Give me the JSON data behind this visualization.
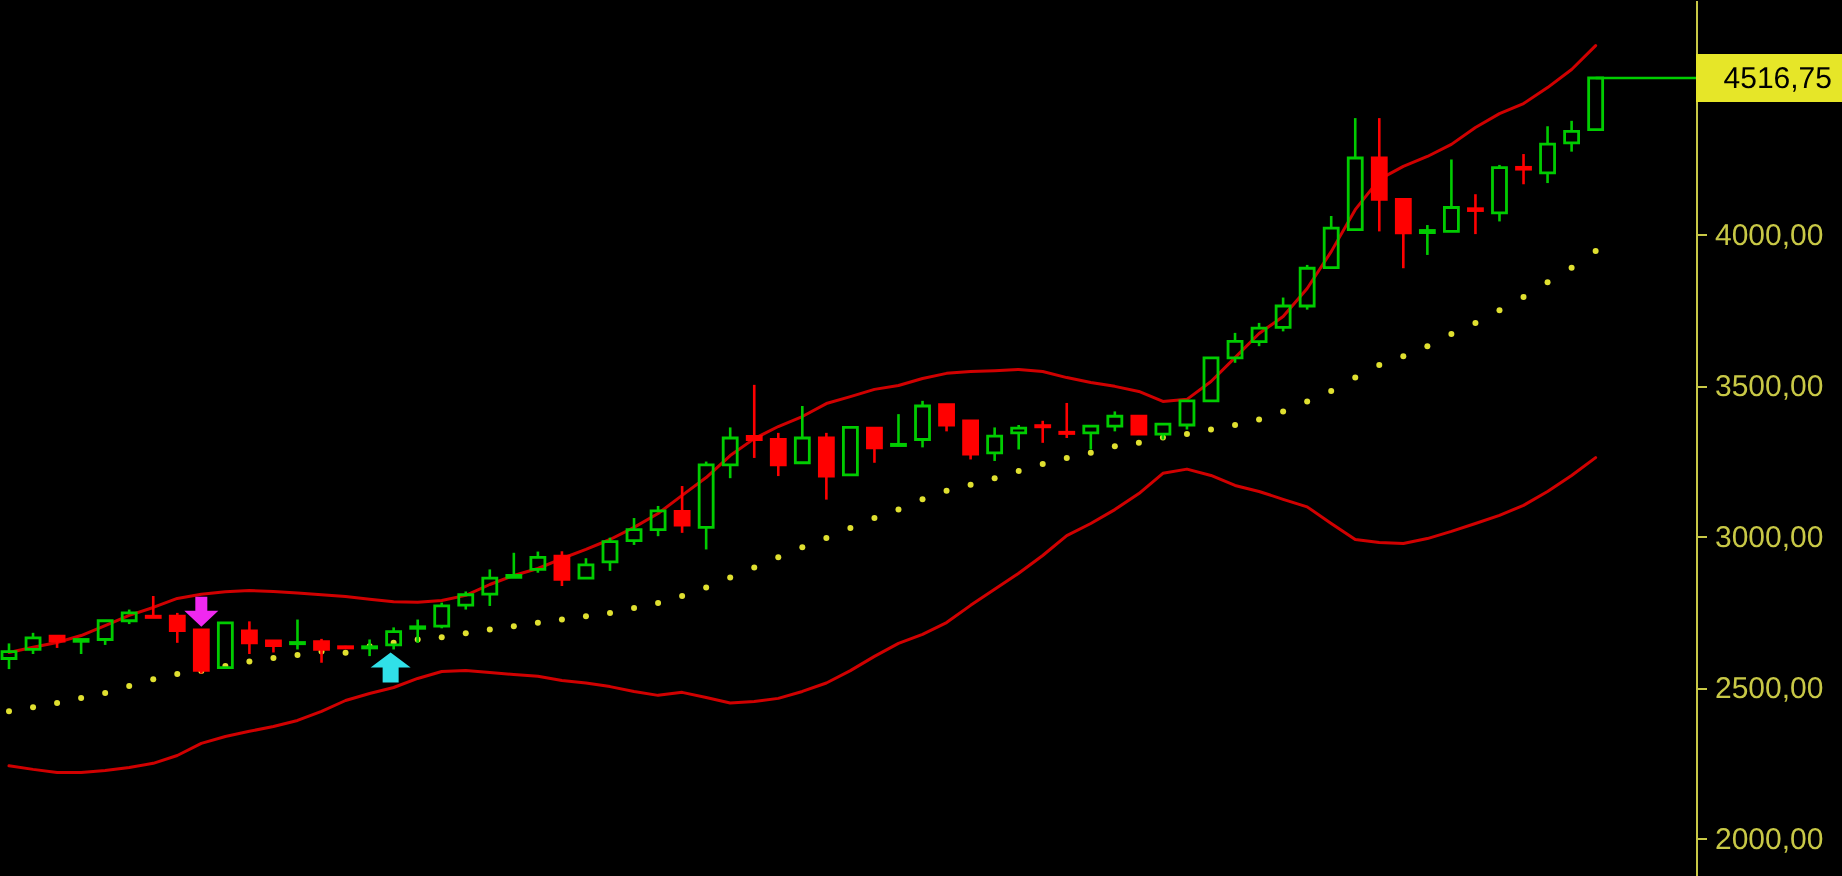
{
  "chart_data": {
    "type": "candlestick",
    "categories": [
      null,
      null,
      null,
      null,
      null,
      null,
      null,
      null,
      null,
      null,
      null,
      null,
      null,
      null,
      null,
      null,
      null,
      null,
      null,
      null,
      null,
      null,
      null,
      null,
      null,
      null,
      null,
      null,
      null,
      null,
      null,
      null,
      null,
      null,
      null,
      null,
      null,
      null,
      null,
      null,
      null,
      null,
      null,
      null,
      null,
      null,
      null,
      null,
      null,
      null,
      null,
      null,
      null,
      null,
      null,
      null,
      null,
      null,
      null,
      null,
      null,
      null,
      null,
      null,
      null,
      null,
      null
    ],
    "ohlc": [
      [
        2595,
        2645,
        2560,
        2618
      ],
      [
        2625,
        2680,
        2610,
        2663
      ],
      [
        2669,
        2669,
        2630,
        2653
      ],
      [
        2652,
        2660,
        2610,
        2658
      ],
      [
        2658,
        2720,
        2640,
        2720
      ],
      [
        2720,
        2757,
        2709,
        2746
      ],
      [
        2735,
        2802,
        2731,
        2731
      ],
      [
        2735,
        2746,
        2647,
        2687
      ],
      [
        2690,
        2690,
        2545,
        2556
      ],
      [
        2565,
        2713,
        2565,
        2713
      ],
      [
        2686,
        2718,
        2610,
        2647
      ],
      [
        2653,
        2653,
        2615,
        2638
      ],
      [
        2644,
        2724,
        2625,
        2648
      ],
      [
        2651,
        2660,
        2581,
        2625
      ],
      [
        2634,
        2637,
        2628,
        2630
      ],
      [
        2630,
        2658,
        2603,
        2634
      ],
      [
        2640,
        2698,
        2625,
        2684
      ],
      [
        2695,
        2724,
        2647,
        2700
      ],
      [
        2702,
        2780,
        2695,
        2769
      ],
      [
        2772,
        2817,
        2757,
        2806
      ],
      [
        2808,
        2890,
        2769,
        2861
      ],
      [
        2864,
        2945,
        2864,
        2870
      ],
      [
        2890,
        2949,
        2879,
        2930
      ],
      [
        2934,
        2950,
        2835,
        2857
      ],
      [
        2861,
        2927,
        2861,
        2905
      ],
      [
        2915,
        2995,
        2885,
        2982
      ],
      [
        2985,
        3060,
        2971,
        3022
      ],
      [
        3022,
        3100,
        3000,
        3084
      ],
      [
        3082,
        3166,
        3011,
        3037
      ],
      [
        3029,
        3247,
        2956,
        3236
      ],
      [
        3236,
        3360,
        3192,
        3325
      ],
      [
        3330,
        3501,
        3259,
        3320
      ],
      [
        3320,
        3342,
        3199,
        3236
      ],
      [
        3243,
        3431,
        3243,
        3325
      ],
      [
        3325,
        3342,
        3121,
        3199
      ],
      [
        3203,
        3360,
        3203,
        3360
      ],
      [
        3358,
        3358,
        3243,
        3292
      ],
      [
        3300,
        3404,
        3300,
        3304
      ],
      [
        3320,
        3448,
        3294,
        3431
      ],
      [
        3435,
        3435,
        3347,
        3368
      ],
      [
        3382,
        3382,
        3254,
        3272
      ],
      [
        3276,
        3360,
        3249,
        3331
      ],
      [
        3342,
        3368,
        3287,
        3358
      ],
      [
        3366,
        3382,
        3309,
        3362
      ],
      [
        3344,
        3441,
        3325,
        3340
      ],
      [
        3342,
        3364,
        3287,
        3364
      ],
      [
        3364,
        3413,
        3347,
        3397
      ],
      [
        3397,
        3397,
        3336,
        3338
      ],
      [
        3338,
        3371,
        3320,
        3371
      ],
      [
        3368,
        3448,
        3353,
        3448
      ],
      [
        3448,
        3590,
        3448,
        3590
      ],
      [
        3590,
        3673,
        3574,
        3645
      ],
      [
        3644,
        3706,
        3629,
        3689
      ],
      [
        3691,
        3790,
        3678,
        3762
      ],
      [
        3762,
        3898,
        3750,
        3887
      ],
      [
        3889,
        4060,
        3889,
        4020
      ],
      [
        4015,
        4384,
        4015,
        4252
      ],
      [
        4252,
        4384,
        4009,
        4115
      ],
      [
        4115,
        4115,
        3887,
        4004
      ],
      [
        4005,
        4030,
        3931,
        4012
      ],
      [
        4009,
        4247,
        4009,
        4088
      ],
      [
        4084,
        4132,
        4000,
        4078
      ],
      [
        4070,
        4229,
        4042,
        4220
      ],
      [
        4221,
        4265,
        4165,
        4215
      ],
      [
        4203,
        4357,
        4169,
        4298
      ],
      [
        4302,
        4375,
        4273,
        4340
      ],
      [
        4346,
        4516.75,
        4346,
        4516.75
      ]
    ],
    "colors": [
      "#00cc00",
      "#00cc00",
      "#ff0000",
      "#00cc00",
      "#00cc00",
      "#00cc00",
      "#ff0000",
      "#ff0000",
      "#ff0000",
      "#00cc00",
      "#ff0000",
      "#ff0000",
      "#00cc00",
      "#ff0000",
      "#ff0000",
      "#00cc00",
      "#00cc00",
      "#00cc00",
      "#00cc00",
      "#00cc00",
      "#00cc00",
      "#00cc00",
      "#00cc00",
      "#ff0000",
      "#00cc00",
      "#00cc00",
      "#00cc00",
      "#00cc00",
      "#ff0000",
      "#00cc00",
      "#00cc00",
      "#ff0000",
      "#ff0000",
      "#00cc00",
      "#ff0000",
      "#00cc00",
      "#ff0000",
      "#00cc00",
      "#00cc00",
      "#ff0000",
      "#ff0000",
      "#00cc00",
      "#00cc00",
      "#ff0000",
      "#ff0000",
      "#00cc00",
      "#00cc00",
      "#ff0000",
      "#00cc00",
      "#00cc00",
      "#00cc00",
      "#00cc00",
      "#00cc00",
      "#00cc00",
      "#00cc00",
      "#00cc00",
      "#00cc00",
      "#ff0000",
      "#ff0000",
      "#00cc00",
      "#00cc00",
      "#ff0000",
      "#00cc00",
      "#ff0000",
      "#00cc00",
      "#00cc00",
      "#00cc00"
    ],
    "series": [
      {
        "type": "line",
        "color": "#d00000",
        "values": [
          2615,
          2632,
          2648,
          2671,
          2704,
          2738,
          2764,
          2794,
          2808,
          2816,
          2820,
          2817,
          2812,
          2806,
          2800,
          2791,
          2783,
          2781,
          2787,
          2804,
          2840,
          2870,
          2893,
          2926,
          2956,
          2989,
          3029,
          3075,
          3135,
          3194,
          3267,
          3323,
          3363,
          3396,
          3439,
          3462,
          3486,
          3499,
          3522,
          3539,
          3545,
          3548,
          3552,
          3545,
          3525,
          3509,
          3496,
          3479,
          3446,
          3453,
          3512,
          3591,
          3671,
          3727,
          3820,
          3942,
          4081,
          4181,
          4224,
          4257,
          4297,
          4353,
          4399,
          4432,
          4485,
          4545,
          4624
        ]
      },
      {
        "type": "line",
        "color": "#d00000",
        "values": [
          2240,
          2228,
          2218,
          2218,
          2224,
          2234,
          2248,
          2274,
          2314,
          2337,
          2354,
          2370,
          2390,
          2420,
          2456,
          2479,
          2499,
          2529,
          2552,
          2555,
          2549,
          2542,
          2536,
          2522,
          2514,
          2502,
          2486,
          2473,
          2483,
          2466,
          2448,
          2453,
          2463,
          2486,
          2514,
          2555,
          2602,
          2645,
          2675,
          2714,
          2771,
          2824,
          2877,
          2936,
          3002,
          3042,
          3088,
          3141,
          3208,
          3222,
          3201,
          3168,
          3148,
          3122,
          3097,
          3042,
          2989,
          2979,
          2976,
          2992,
          3016,
          3042,
          3069,
          3102,
          3148,
          3201,
          3260
        ]
      },
      {
        "type": "scatter",
        "color": "#e0e030",
        "marker": "circle",
        "values": [
          2420,
          2434,
          2448,
          2464,
          2481,
          2504,
          2526,
          2544,
          2554,
          2570,
          2585,
          2597,
          2607,
          2618,
          2614,
          2636,
          2647,
          2658,
          2665,
          2679,
          2691,
          2702,
          2713,
          2724,
          2735,
          2746,
          2762,
          2779,
          2802,
          2830,
          2863,
          2896,
          2930,
          2963,
          2994,
          3027,
          3060,
          3088,
          3122,
          3150,
          3170,
          3192,
          3216,
          3239,
          3259,
          3276,
          3298,
          3309,
          3327,
          3338,
          3353,
          3368,
          3386,
          3413,
          3446,
          3481,
          3525,
          3567,
          3596,
          3629,
          3669,
          3706,
          3748,
          3792,
          3841,
          3889,
          3944
        ]
      }
    ],
    "ylim": [
      1875,
      4775
    ],
    "yticks": [
      {
        "value": 2000,
        "label": "2000,00"
      },
      {
        "value": 2500,
        "label": "2500,00"
      },
      {
        "value": 3000,
        "label": "3000,00"
      },
      {
        "value": 3500,
        "label": "3500,00"
      },
      {
        "value": 4000,
        "label": "4000,00"
      }
    ],
    "tick_labels": "y",
    "ref_lines": [
      {
        "axis": "y",
        "value": 4516.75,
        "label": "4516,75",
        "color": "#00cc00"
      }
    ]
  }
}
